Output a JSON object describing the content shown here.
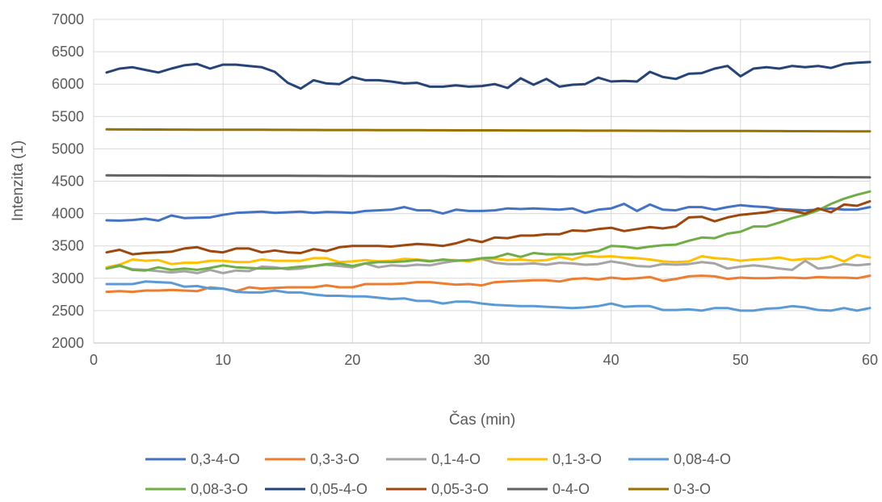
{
  "chart_data": {
    "type": "line",
    "title": "",
    "xlabel": "Čas (min)",
    "ylabel": "Intenzita (1)",
    "xlim": [
      0,
      60
    ],
    "ylim": [
      2000,
      7000
    ],
    "x_ticks": [
      0,
      10,
      20,
      30,
      40,
      50,
      60
    ],
    "y_ticks": [
      2000,
      2500,
      3000,
      3500,
      4000,
      4500,
      5000,
      5500,
      6000,
      6500,
      7000
    ],
    "grid": true,
    "legend_position": "bottom",
    "x": [
      1,
      2,
      3,
      4,
      5,
      6,
      7,
      8,
      9,
      10,
      11,
      12,
      13,
      14,
      15,
      16,
      17,
      18,
      19,
      20,
      21,
      22,
      23,
      24,
      25,
      26,
      27,
      28,
      29,
      30,
      31,
      32,
      33,
      34,
      35,
      36,
      37,
      38,
      39,
      40,
      41,
      42,
      43,
      44,
      45,
      46,
      47,
      48,
      49,
      50,
      51,
      52,
      53,
      54,
      55,
      56,
      57,
      58,
      59,
      60
    ],
    "series": [
      {
        "name": "0,3-4-O",
        "color": "#4472C4",
        "values": [
          3895,
          3890,
          3900,
          3920,
          3890,
          3970,
          3930,
          3935,
          3940,
          3980,
          4010,
          4020,
          4030,
          4010,
          4020,
          4030,
          4010,
          4025,
          4020,
          4010,
          4040,
          4050,
          4060,
          4100,
          4050,
          4050,
          4000,
          4060,
          4040,
          4040,
          4050,
          4080,
          4070,
          4080,
          4070,
          4060,
          4080,
          4010,
          4060,
          4080,
          4150,
          4040,
          4140,
          4060,
          4050,
          4100,
          4100,
          4060,
          4100,
          4130,
          4110,
          4100,
          4070,
          4060,
          4050,
          4060,
          4080,
          4060,
          4060,
          4100
        ]
      },
      {
        "name": "0,3-3-O",
        "color": "#ED7D31",
        "values": [
          2790,
          2800,
          2790,
          2810,
          2810,
          2820,
          2810,
          2800,
          2860,
          2840,
          2800,
          2860,
          2840,
          2850,
          2860,
          2860,
          2860,
          2890,
          2860,
          2860,
          2910,
          2910,
          2910,
          2920,
          2940,
          2940,
          2920,
          2900,
          2910,
          2890,
          2940,
          2950,
          2960,
          2970,
          2970,
          2950,
          2990,
          3000,
          2980,
          3010,
          2990,
          3000,
          3020,
          2960,
          2990,
          3030,
          3040,
          3030,
          2990,
          3010,
          3000,
          3000,
          3010,
          3010,
          3000,
          3020,
          3010,
          3010,
          3000,
          3040
        ]
      },
      {
        "name": "0,1-4-O",
        "color": "#A5A5A5",
        "values": [
          3150,
          3190,
          3140,
          3130,
          3110,
          3090,
          3110,
          3080,
          3130,
          3080,
          3120,
          3110,
          3180,
          3170,
          3140,
          3150,
          3190,
          3210,
          3190,
          3170,
          3230,
          3170,
          3200,
          3190,
          3210,
          3200,
          3240,
          3270,
          3280,
          3300,
          3240,
          3220,
          3220,
          3230,
          3210,
          3240,
          3230,
          3210,
          3220,
          3260,
          3230,
          3190,
          3180,
          3220,
          3210,
          3220,
          3250,
          3230,
          3150,
          3180,
          3200,
          3180,
          3150,
          3130,
          3270,
          3150,
          3170,
          3220,
          3200,
          3220
        ]
      },
      {
        "name": "0,1-3-O",
        "color": "#FFC000",
        "values": [
          3170,
          3210,
          3290,
          3270,
          3280,
          3220,
          3240,
          3240,
          3270,
          3270,
          3250,
          3250,
          3290,
          3270,
          3270,
          3270,
          3310,
          3310,
          3250,
          3260,
          3280,
          3260,
          3270,
          3300,
          3290,
          3270,
          3280,
          3280,
          3260,
          3300,
          3300,
          3280,
          3290,
          3270,
          3280,
          3330,
          3290,
          3350,
          3330,
          3340,
          3320,
          3310,
          3290,
          3260,
          3250,
          3260,
          3340,
          3310,
          3300,
          3270,
          3290,
          3300,
          3320,
          3280,
          3300,
          3300,
          3340,
          3260,
          3360,
          3320
        ]
      },
      {
        "name": "0,08-4-O",
        "color": "#5B9BD5",
        "values": [
          2910,
          2910,
          2910,
          2950,
          2940,
          2930,
          2870,
          2880,
          2840,
          2840,
          2790,
          2780,
          2780,
          2810,
          2780,
          2780,
          2750,
          2730,
          2730,
          2720,
          2720,
          2700,
          2680,
          2690,
          2650,
          2650,
          2610,
          2640,
          2640,
          2610,
          2590,
          2580,
          2570,
          2570,
          2560,
          2550,
          2540,
          2550,
          2570,
          2610,
          2560,
          2570,
          2570,
          2510,
          2510,
          2520,
          2500,
          2540,
          2540,
          2500,
          2500,
          2530,
          2540,
          2570,
          2550,
          2510,
          2500,
          2540,
          2500,
          2540
        ]
      },
      {
        "name": "0,08-3-O",
        "color": "#70AD47",
        "values": [
          3150,
          3200,
          3130,
          3120,
          3170,
          3130,
          3150,
          3130,
          3160,
          3200,
          3170,
          3160,
          3150,
          3150,
          3160,
          3180,
          3190,
          3220,
          3230,
          3190,
          3230,
          3250,
          3250,
          3260,
          3280,
          3260,
          3290,
          3270,
          3280,
          3310,
          3320,
          3380,
          3330,
          3390,
          3370,
          3370,
          3370,
          3390,
          3420,
          3500,
          3490,
          3460,
          3490,
          3510,
          3520,
          3580,
          3630,
          3620,
          3690,
          3720,
          3800,
          3800,
          3860,
          3930,
          3980,
          4050,
          4150,
          4230,
          4290,
          4340
        ]
      },
      {
        "name": "0,05-4-O",
        "color": "#264478",
        "values": [
          6180,
          6240,
          6260,
          6220,
          6180,
          6240,
          6290,
          6310,
          6240,
          6300,
          6300,
          6280,
          6260,
          6190,
          6020,
          5930,
          6060,
          6010,
          6000,
          6110,
          6060,
          6060,
          6040,
          6010,
          6020,
          5960,
          5960,
          5980,
          5960,
          5970,
          6000,
          5940,
          6090,
          5990,
          6080,
          5960,
          5990,
          6000,
          6100,
          6040,
          6050,
          6040,
          6190,
          6110,
          6080,
          6160,
          6170,
          6240,
          6280,
          6120,
          6240,
          6260,
          6240,
          6280,
          6260,
          6280,
          6250,
          6310,
          6330,
          6340
        ]
      },
      {
        "name": "0,05-3-O",
        "color": "#9E480E",
        "values": [
          3400,
          3440,
          3370,
          3390,
          3400,
          3410,
          3460,
          3480,
          3420,
          3400,
          3460,
          3460,
          3400,
          3430,
          3400,
          3390,
          3450,
          3420,
          3480,
          3500,
          3500,
          3500,
          3490,
          3510,
          3530,
          3520,
          3500,
          3540,
          3600,
          3560,
          3630,
          3620,
          3660,
          3660,
          3680,
          3680,
          3740,
          3730,
          3760,
          3780,
          3730,
          3760,
          3790,
          3770,
          3800,
          3940,
          3950,
          3880,
          3940,
          3980,
          4000,
          4020,
          4060,
          4040,
          4000,
          4080,
          4020,
          4140,
          4120,
          4190
        ]
      },
      {
        "name": "0-4-O",
        "color": "#636363",
        "values": [
          4590,
          4589,
          4589,
          4588,
          4588,
          4587,
          4587,
          4586,
          4586,
          4585,
          4585,
          4584,
          4584,
          4583,
          4583,
          4582,
          4582,
          4581,
          4581,
          4580,
          4580,
          4579,
          4579,
          4578,
          4578,
          4577,
          4577,
          4576,
          4576,
          4575,
          4575,
          4574,
          4574,
          4573,
          4573,
          4572,
          4572,
          4571,
          4571,
          4570,
          4570,
          4569,
          4569,
          4568,
          4568,
          4567,
          4567,
          4566,
          4566,
          4565,
          4565,
          4564,
          4564,
          4563,
          4563,
          4562,
          4562,
          4561,
          4561,
          4560
        ]
      },
      {
        "name": "0-3-O",
        "color": "#997300",
        "values": [
          5300,
          5299,
          5299,
          5298,
          5298,
          5297,
          5297,
          5296,
          5296,
          5295,
          5295,
          5294,
          5294,
          5293,
          5293,
          5292,
          5292,
          5291,
          5291,
          5290,
          5290,
          5289,
          5289,
          5288,
          5288,
          5287,
          5287,
          5286,
          5286,
          5285,
          5285,
          5284,
          5284,
          5283,
          5283,
          5282,
          5282,
          5281,
          5281,
          5280,
          5280,
          5279,
          5279,
          5278,
          5278,
          5277,
          5277,
          5276,
          5276,
          5275,
          5275,
          5274,
          5274,
          5273,
          5273,
          5272,
          5272,
          5271,
          5271,
          5270
        ]
      }
    ]
  }
}
